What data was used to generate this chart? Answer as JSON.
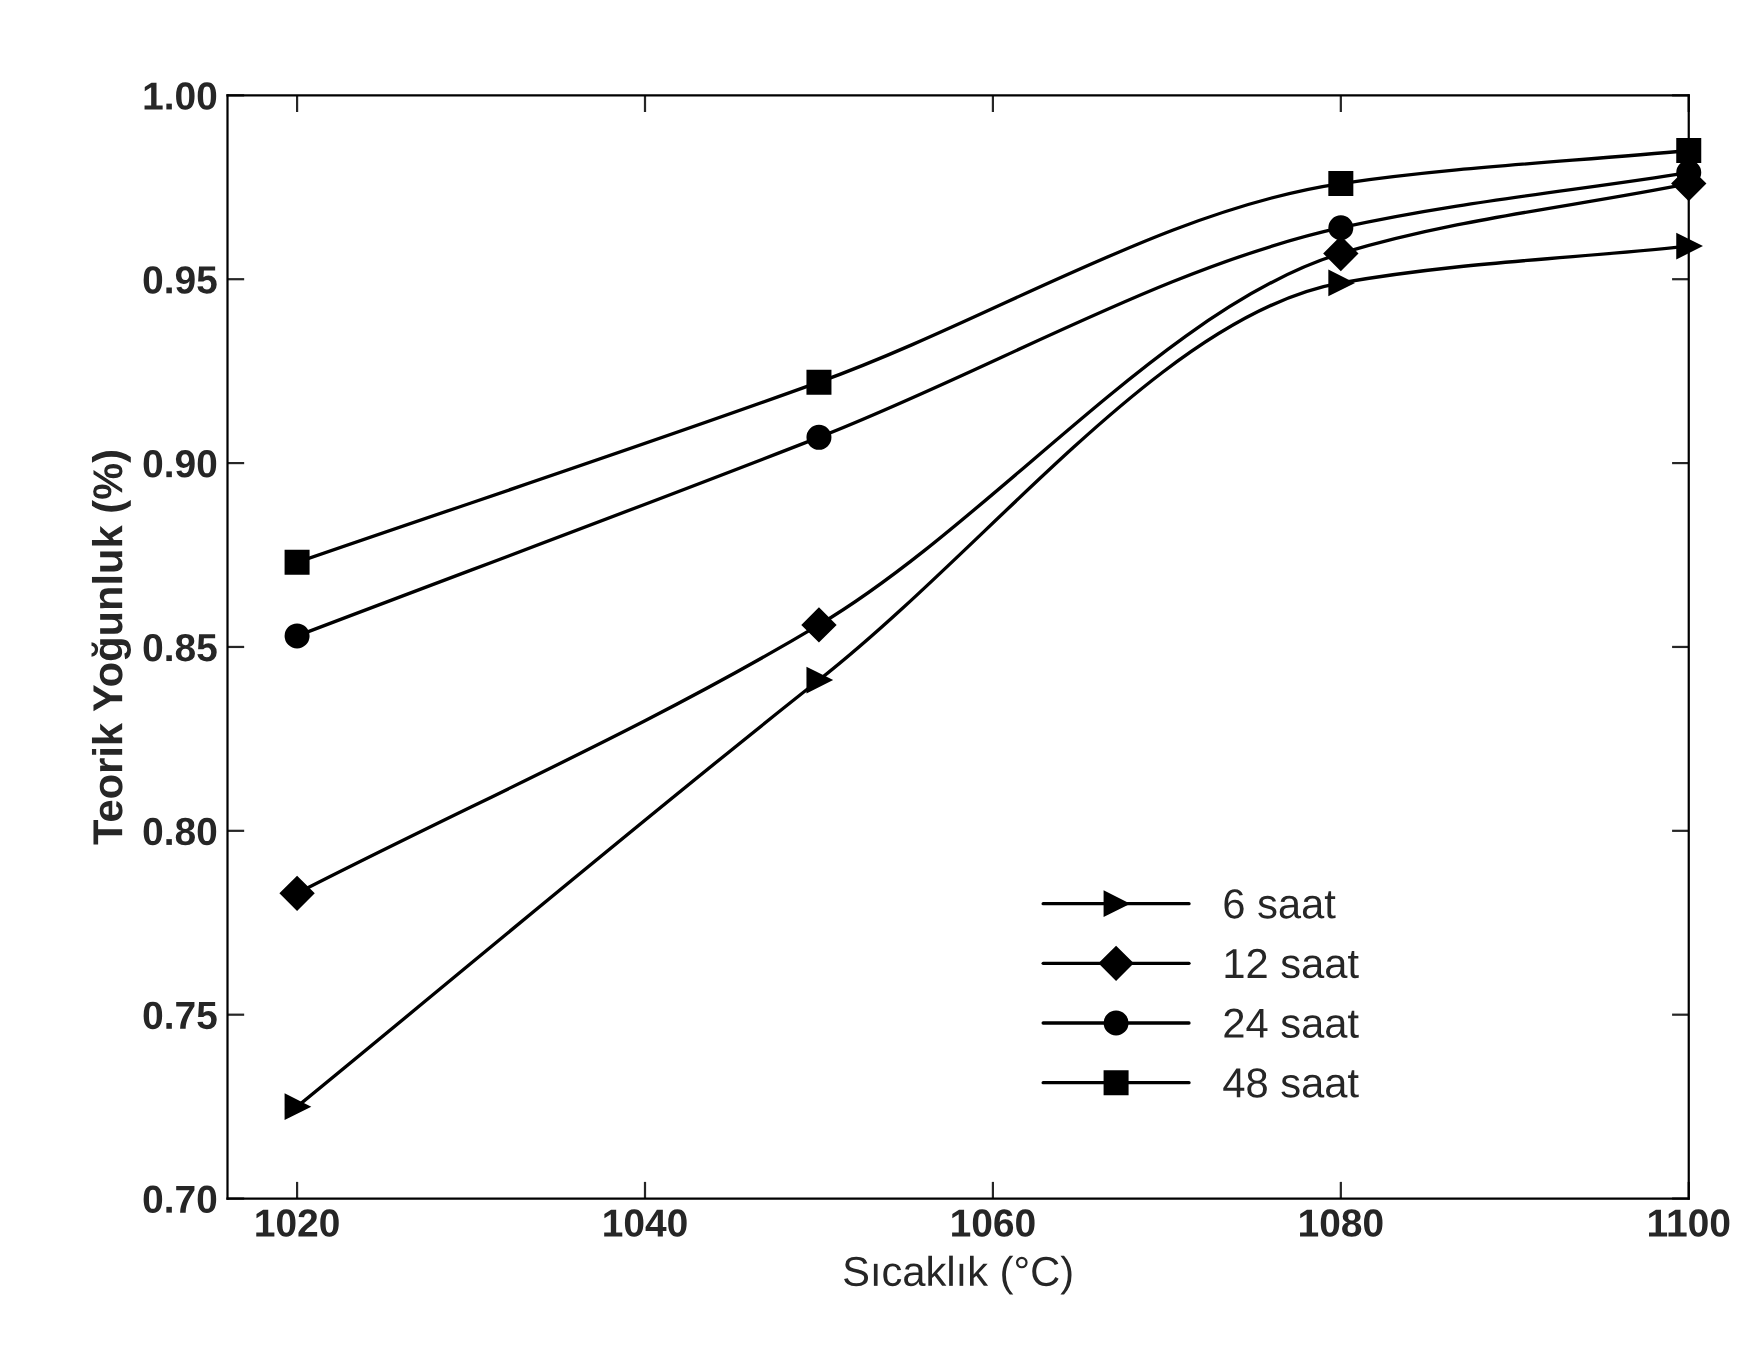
{
  "chart_data": {
    "type": "line",
    "xlabel": "Sıcaklık (°C)",
    "ylabel": "Teorik Yoğunluk (%)",
    "x": [
      1020,
      1050,
      1080,
      1100
    ],
    "series": [
      {
        "name": "6 saat",
        "color": "#000000",
        "marker": "triangle",
        "values": [
          0.725,
          0.841,
          0.949,
          0.959
        ]
      },
      {
        "name": "12 saat",
        "color": "#000000",
        "marker": "diamond",
        "values": [
          0.783,
          0.856,
          0.957,
          0.976
        ]
      },
      {
        "name": "24 saat",
        "color": "#000000",
        "marker": "circle",
        "values": [
          0.853,
          0.907,
          0.964,
          0.979
        ]
      },
      {
        "name": "48 saat",
        "color": "#000000",
        "marker": "square",
        "values": [
          0.873,
          0.922,
          0.976,
          0.985
        ]
      }
    ],
    "xlim": [
      1016,
      1100
    ],
    "xticks": [
      1020,
      1040,
      1060,
      1080,
      1100
    ],
    "ylim": [
      0.7,
      1.0
    ],
    "yticks": [
      {
        "value": 0.7,
        "label": "0.70"
      },
      {
        "value": 0.75,
        "label": "0.75"
      },
      {
        "value": 0.8,
        "label": "0.80"
      },
      {
        "value": 0.85,
        "label": "0.85"
      },
      {
        "value": 0.9,
        "label": "0.90"
      },
      {
        "value": 0.95,
        "label": "0.95"
      },
      {
        "value": 1.0,
        "label": "1.00"
      }
    ],
    "grid": false,
    "legend": "bottom right",
    "line_style": "solid"
  }
}
